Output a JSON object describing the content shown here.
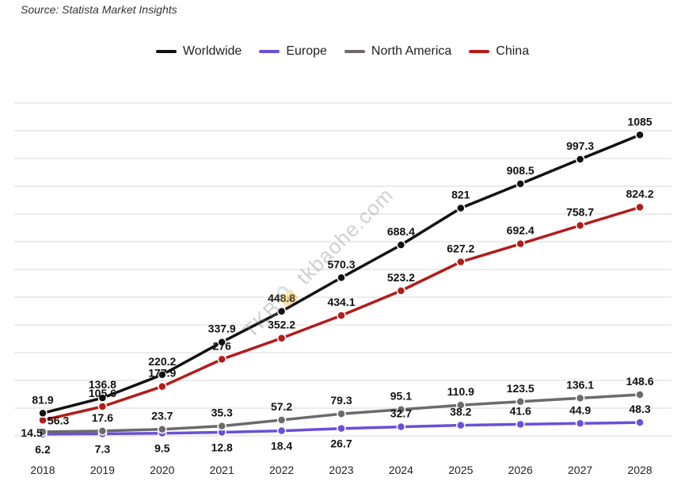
{
  "source": "Source: Statista Market Insights",
  "watermark": "TKB🔒 tkbaohe.com",
  "chart_data": {
    "type": "line",
    "x": [
      "2018",
      "2019",
      "2020",
      "2021",
      "2022",
      "2023",
      "2024",
      "2025",
      "2026",
      "2027",
      "2028"
    ],
    "series": [
      {
        "name": "Worldwide",
        "color": "#111111",
        "values": [
          81.9,
          136.8,
          220.2,
          337.9,
          448.8,
          570.3,
          688.4,
          821,
          908.5,
          997.3,
          1085
        ]
      },
      {
        "name": "Europe",
        "color": "#6a4fd8",
        "values": [
          6.2,
          7.3,
          9.5,
          12.8,
          18.4,
          26.7,
          32.7,
          38.2,
          41.6,
          44.9,
          48.3
        ]
      },
      {
        "name": "North America",
        "color": "#6e6a6a",
        "values": [
          14.5,
          17.6,
          23.7,
          35.3,
          57.2,
          79.3,
          95.1,
          110.9,
          123.5,
          136.1,
          148.6
        ]
      },
      {
        "name": "China",
        "color": "#b31b1b",
        "values": [
          56.3,
          105.6,
          177.9,
          276,
          352.2,
          434.1,
          523.2,
          627.2,
          692.4,
          758.7,
          824.2
        ]
      }
    ],
    "labels": [
      [
        "81.9",
        "136.8",
        "220.2",
        "337.9",
        "448.8",
        "570.3",
        "688.4",
        "821",
        "908.5",
        "997.3",
        "1085"
      ],
      [
        "6.2",
        "7.3",
        "9.5",
        "12.8",
        "18.4",
        "26.7",
        "32.7",
        "38.2",
        "41.6",
        "44.9",
        "48.3"
      ],
      [
        "14.5",
        "17.6",
        "23.7",
        "35.3",
        "57.2",
        "79.3",
        "95.1",
        "110.9",
        "123.5",
        "136.1",
        "148.6"
      ],
      [
        "56.3",
        "105.6",
        "177.9",
        "276",
        "352.2",
        "434.1",
        "523.2",
        "627.2",
        "692.4",
        "758.7",
        "824.2"
      ]
    ],
    "ylim": [
      0,
      1200
    ],
    "grid": true,
    "legend": "top-center"
  }
}
